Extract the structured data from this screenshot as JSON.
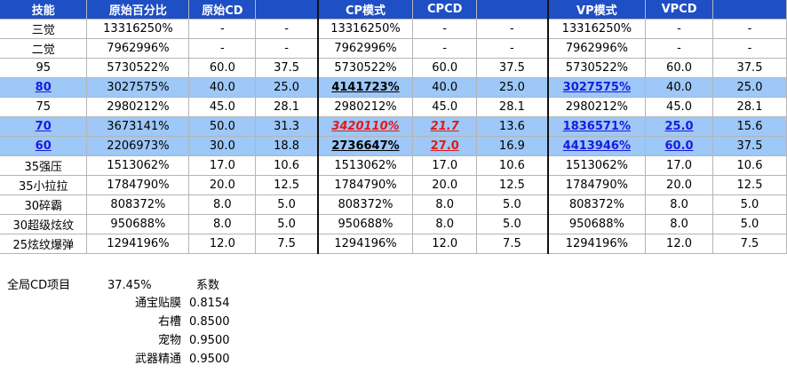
{
  "header": [
    "技能",
    "原始百分比",
    "原始CD",
    "",
    "CP模式",
    "CPCD",
    "",
    "VP模式",
    "VPCD",
    ""
  ],
  "rows": [
    {
      "skill": "三觉",
      "orig_pct": "13316250%",
      "cd1": "-",
      "cd2": "-",
      "cp_pct": "13316250%",
      "cp_cd1": "-",
      "cp_cd2": "-",
      "vp_pct": "13316250%",
      "vp_cd1": "-",
      "vp_cd2": "-"
    },
    {
      "skill": "二觉",
      "orig_pct": "7962996%",
      "cd1": "-",
      "cd2": "-",
      "cp_pct": "7962996%",
      "cp_cd1": "-",
      "cp_cd2": "-",
      "vp_pct": "7962996%",
      "vp_cd1": "-",
      "vp_cd2": "-"
    },
    {
      "skill": "95",
      "orig_pct": "5730522%",
      "cd1": "60.0",
      "cd2": "37.5",
      "cp_pct": "5730522%",
      "cp_cd1": "60.0",
      "cp_cd2": "37.5",
      "vp_pct": "5730522%",
      "vp_cd1": "60.0",
      "vp_cd2": "37.5"
    },
    {
      "skill": "80",
      "orig_pct": "3027575%",
      "cd1": "40.0",
      "cd2": "25.0",
      "cp_pct": "4141723%",
      "cp_cd1": "40.0",
      "cp_cd2": "25.0",
      "vp_pct": "3027575%",
      "vp_cd1": "40.0",
      "vp_cd2": "25.0"
    },
    {
      "skill": "75",
      "orig_pct": "2980212%",
      "cd1": "45.0",
      "cd2": "28.1",
      "cp_pct": "2980212%",
      "cp_cd1": "45.0",
      "cp_cd2": "28.1",
      "vp_pct": "2980212%",
      "vp_cd1": "45.0",
      "vp_cd2": "28.1"
    },
    {
      "skill": "70",
      "orig_pct": "3673141%",
      "cd1": "50.0",
      "cd2": "31.3",
      "cp_pct": "3420110%",
      "cp_cd1": "21.7",
      "cp_cd2": "13.6",
      "vp_pct": "1836571%",
      "vp_cd1": "25.0",
      "vp_cd2": "15.6"
    },
    {
      "skill": "60",
      "orig_pct": "2206973%",
      "cd1": "30.0",
      "cd2": "18.8",
      "cp_pct": "2736647%",
      "cp_cd1": "27.0",
      "cp_cd2": "16.9",
      "vp_pct": "4413946%",
      "vp_cd1": "60.0",
      "vp_cd2": "37.5"
    },
    {
      "skill": "35强压",
      "orig_pct": "1513062%",
      "cd1": "17.0",
      "cd2": "10.6",
      "cp_pct": "1513062%",
      "cp_cd1": "17.0",
      "cp_cd2": "10.6",
      "vp_pct": "1513062%",
      "vp_cd1": "17.0",
      "vp_cd2": "10.6"
    },
    {
      "skill": "35小拉拉",
      "orig_pct": "1784790%",
      "cd1": "20.0",
      "cd2": "12.5",
      "cp_pct": "1784790%",
      "cp_cd1": "20.0",
      "cp_cd2": "12.5",
      "vp_pct": "1784790%",
      "vp_cd1": "20.0",
      "vp_cd2": "12.5"
    },
    {
      "skill": "30碎霸",
      "orig_pct": "808372%",
      "cd1": "8.0",
      "cd2": "5.0",
      "cp_pct": "808372%",
      "cp_cd1": "8.0",
      "cp_cd2": "5.0",
      "vp_pct": "808372%",
      "vp_cd1": "8.0",
      "vp_cd2": "5.0"
    },
    {
      "skill": "30超级炫纹",
      "orig_pct": "950688%",
      "cd1": "8.0",
      "cd2": "5.0",
      "cp_pct": "950688%",
      "cp_cd1": "8.0",
      "cp_cd2": "5.0",
      "vp_pct": "950688%",
      "vp_cd1": "8.0",
      "vp_cd2": "5.0"
    },
    {
      "skill": "25炫纹爆弹",
      "orig_pct": "1294196%",
      "cd1": "12.0",
      "cd2": "7.5",
      "cp_pct": "1294196%",
      "cp_cd1": "12.0",
      "cp_cd2": "7.5",
      "vp_pct": "1294196%",
      "vp_cd1": "12.0",
      "vp_cd2": "7.5"
    }
  ],
  "summary": {
    "global_label": "全局CD项目",
    "global_value": "37.45%",
    "coef_label": "系数",
    "items": [
      {
        "label": "通宝贴膜",
        "value": "0.8154"
      },
      {
        "label": "右槽",
        "value": "0.8500"
      },
      {
        "label": "宠物",
        "value": "0.9500"
      },
      {
        "label": "武器精通",
        "value": "0.9500"
      }
    ]
  },
  "colors": {
    "header_bg": "#1f4fc4",
    "highlight_bg": "#9dc8f7",
    "red": "#e21919",
    "blue": "#1a1adf"
  }
}
